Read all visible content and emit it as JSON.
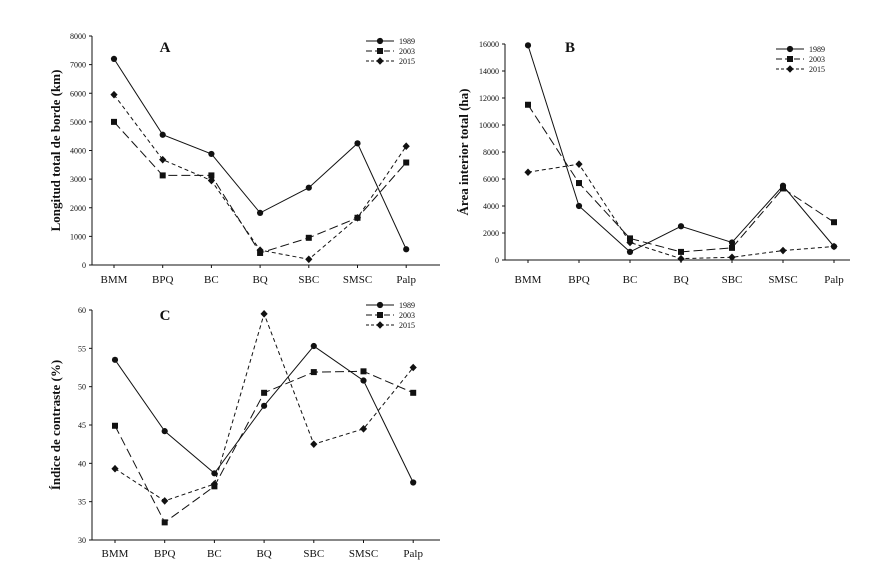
{
  "colors": {
    "line": "#111111",
    "background": "#ffffff"
  },
  "chart_data": [
    {
      "type": "line",
      "label": "A",
      "ylabel": "Longitud total de borde (km)",
      "xlabel": "",
      "categories": [
        "BMM",
        "BPQ",
        "BC",
        "BQ",
        "SBC",
        "SMSC",
        "Palp"
      ],
      "ylim": [
        0,
        8000
      ],
      "yticks": [
        "0",
        "1000",
        "2000",
        "3000",
        "4000",
        "5000",
        "6000",
        "7000",
        "8000"
      ],
      "legend_position": "top-right",
      "series": [
        {
          "name": "1989",
          "marker": "circle",
          "dash": "solid",
          "values": [
            7200,
            4550,
            3880,
            1820,
            2700,
            4250,
            550
          ]
        },
        {
          "name": "2003",
          "marker": "square",
          "dash": "long-dash",
          "values": [
            5000,
            3130,
            3130,
            420,
            950,
            1650,
            3580
          ]
        },
        {
          "name": "2015",
          "marker": "diamond",
          "dash": "short-dash",
          "values": [
            5950,
            3680,
            2950,
            520,
            200,
            1650,
            4150
          ]
        }
      ]
    },
    {
      "type": "line",
      "label": "B",
      "ylabel": "Área interior total (ha)",
      "xlabel": "",
      "categories": [
        "BMM",
        "BPQ",
        "BC",
        "BQ",
        "SBC",
        "SMSC",
        "Palp"
      ],
      "ylim": [
        0,
        16000
      ],
      "yticks": [
        "0",
        "2000",
        "4000",
        "6000",
        "8000",
        "10000",
        "12000",
        "14000",
        "16000"
      ],
      "legend_position": "top-right",
      "series": [
        {
          "name": "1989",
          "marker": "circle",
          "dash": "solid",
          "values": [
            15900,
            4000,
            600,
            2500,
            1300,
            5500,
            1000
          ]
        },
        {
          "name": "2003",
          "marker": "square",
          "dash": "long-dash",
          "values": [
            11500,
            5700,
            1600,
            600,
            900,
            5300,
            2800
          ]
        },
        {
          "name": "2015",
          "marker": "diamond",
          "dash": "short-dash",
          "values": [
            6500,
            7100,
            1300,
            100,
            200,
            700,
            1000
          ]
        }
      ]
    },
    {
      "type": "line",
      "label": "C",
      "ylabel": "Índice de contraste (%)",
      "xlabel": "",
      "categories": [
        "BMM",
        "BPQ",
        "BC",
        "BQ",
        "SBC",
        "SMSC",
        "Palp"
      ],
      "ylim": [
        30,
        60
      ],
      "yticks": [
        "30",
        "35",
        "40",
        "45",
        "50",
        "55",
        "60"
      ],
      "legend_position": "top-right",
      "series": [
        {
          "name": "1989",
          "marker": "circle",
          "dash": "solid",
          "values": [
            53.5,
            44.2,
            38.7,
            47.5,
            55.3,
            50.8,
            37.5
          ]
        },
        {
          "name": "2003",
          "marker": "square",
          "dash": "long-dash",
          "values": [
            44.9,
            32.3,
            37.0,
            49.2,
            51.9,
            52.0,
            49.2
          ]
        },
        {
          "name": "2015",
          "marker": "diamond",
          "dash": "short-dash",
          "values": [
            39.3,
            35.1,
            37.3,
            59.5,
            42.5,
            44.5,
            52.5
          ]
        }
      ]
    }
  ]
}
